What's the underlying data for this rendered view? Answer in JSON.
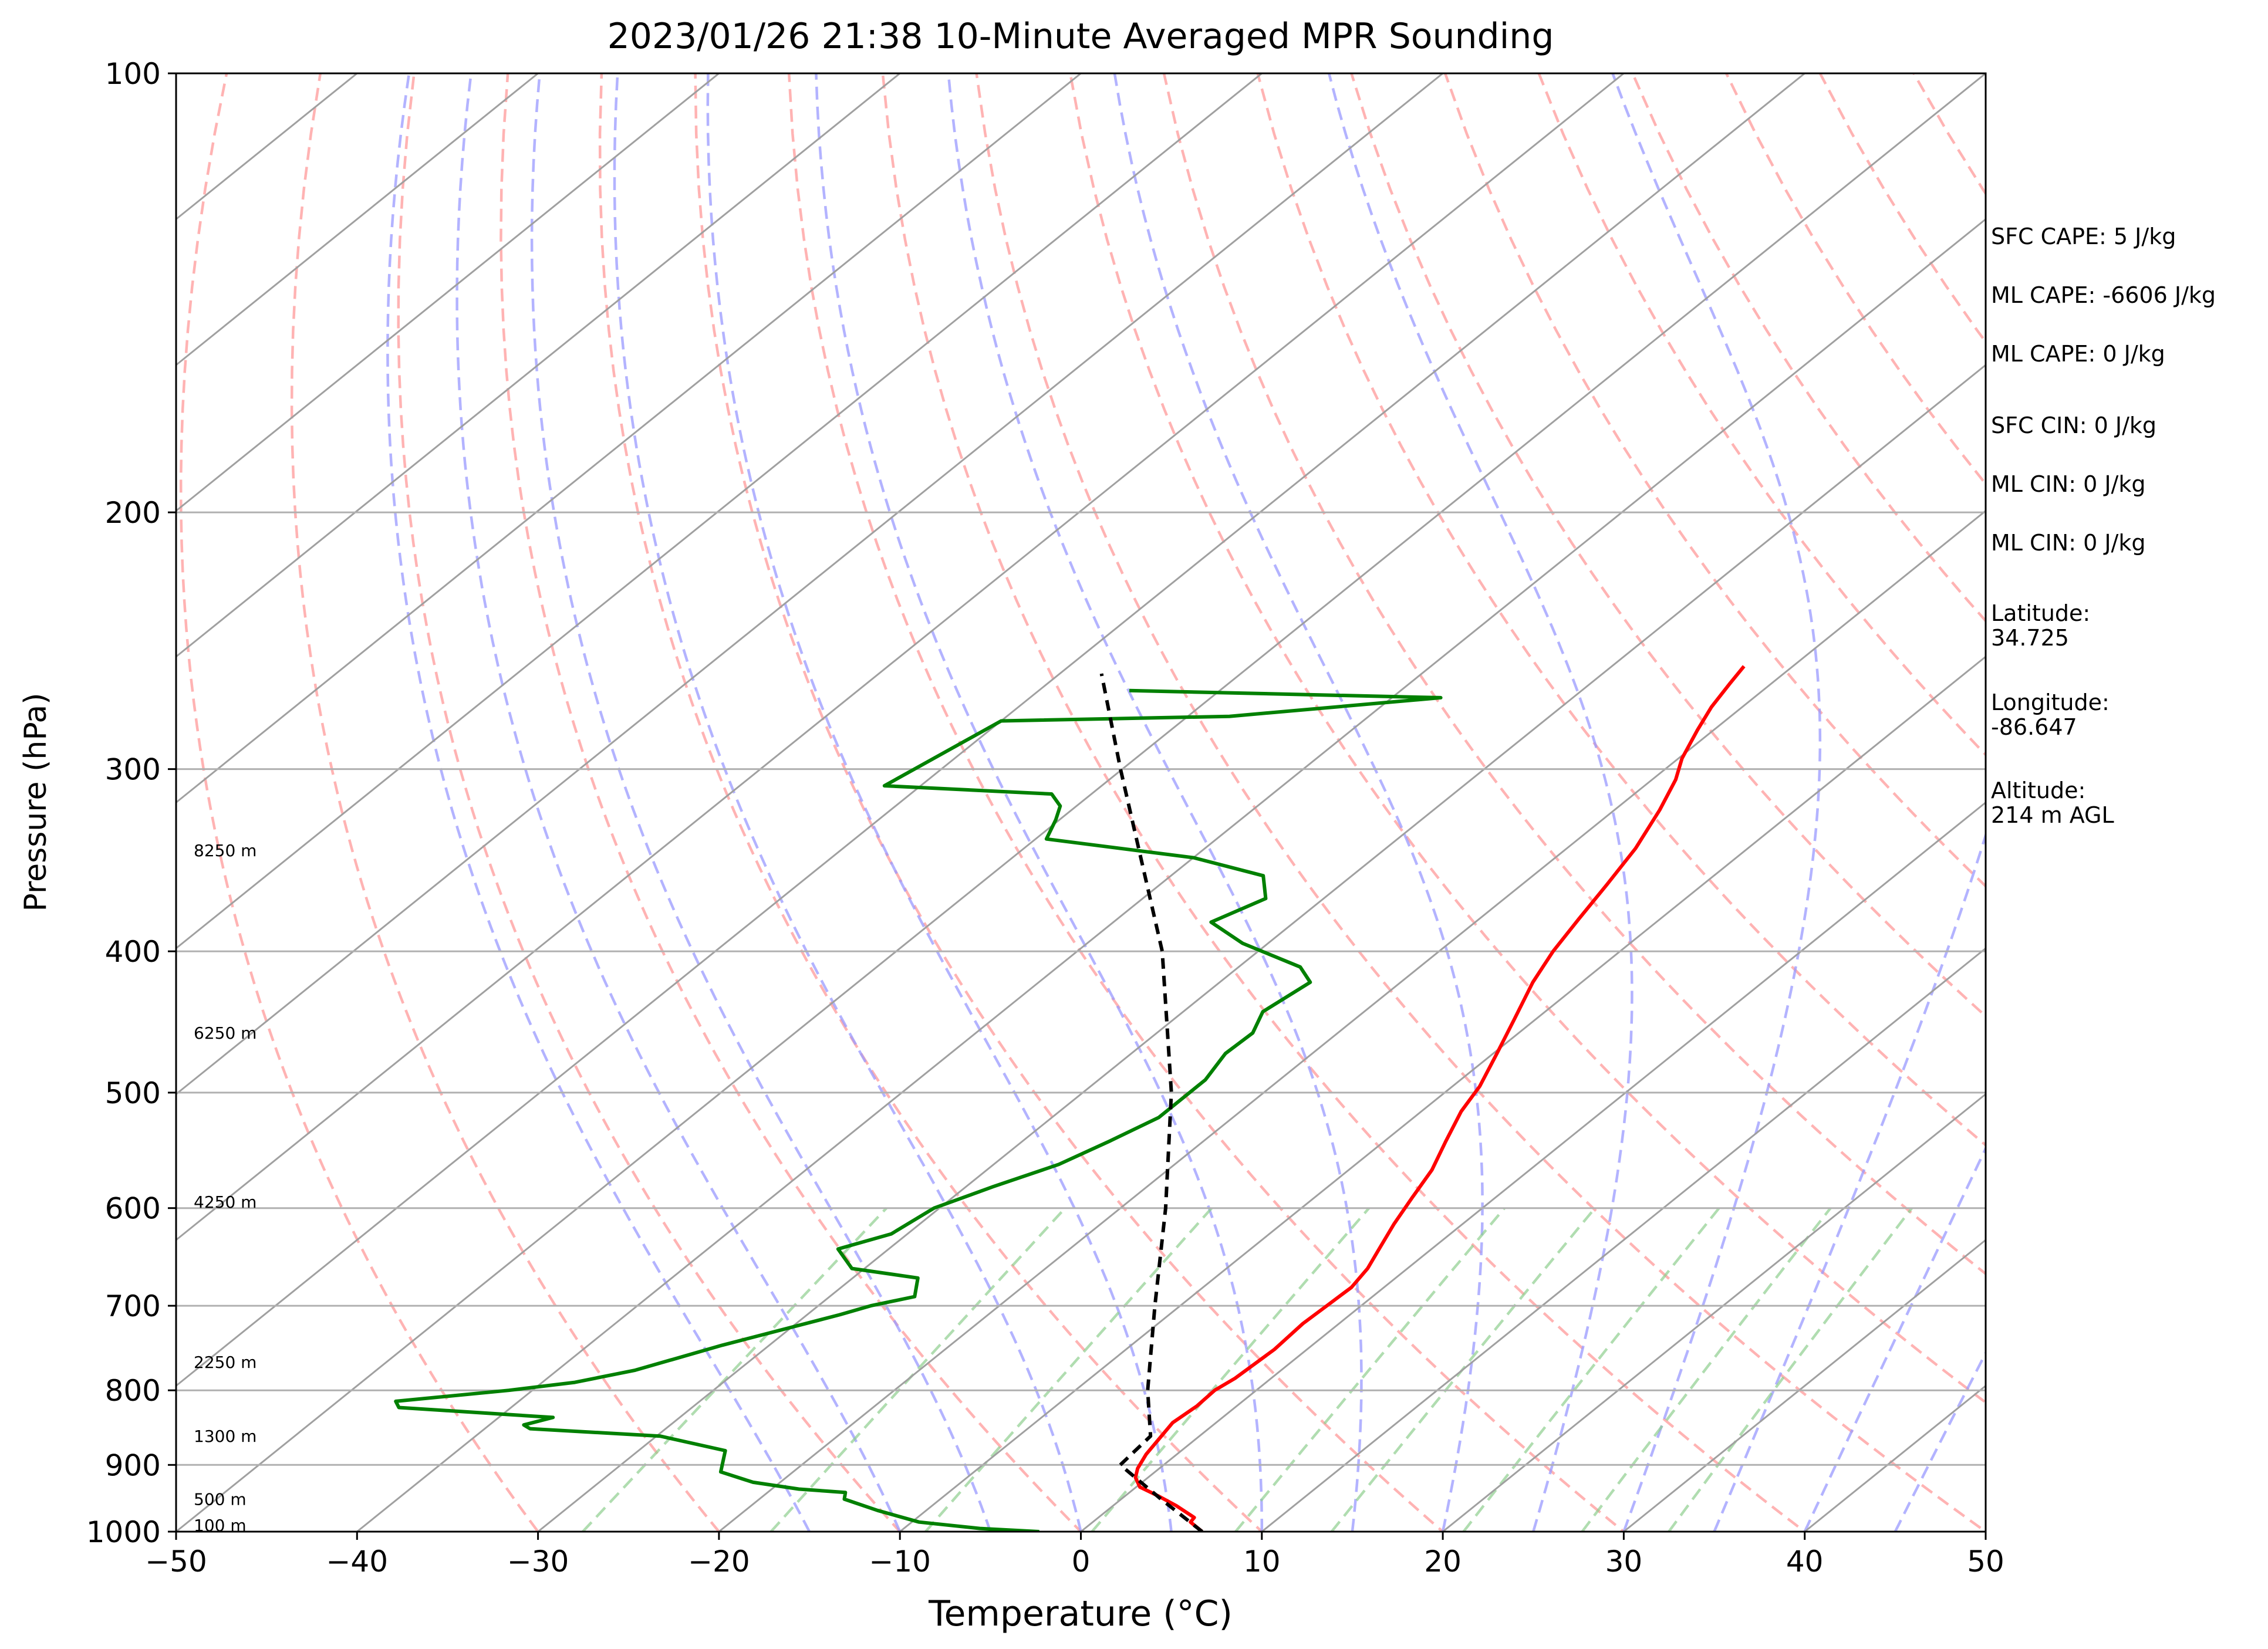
{
  "chart_data": {
    "type": "line",
    "title": "2023/01/26 21:38 10-Minute Averaged MPR Sounding",
    "xlabel": "Temperature (°C)",
    "ylabel": "Pressure (hPa)",
    "xlim": [
      -50,
      50
    ],
    "ylim": [
      1000,
      100
    ],
    "y_scale": "log",
    "grid": true,
    "x_ticks": [
      "−50",
      "−40",
      "−30",
      "−20",
      "−10",
      "0",
      "10",
      "20",
      "30",
      "40",
      "50"
    ],
    "y_ticks": [
      "100",
      "200",
      "300",
      "400",
      "500",
      "600",
      "700",
      "800",
      "900",
      "1000"
    ],
    "background_lines": {
      "isotherms": {
        "style": "solid",
        "color": "#a0a0a0"
      },
      "dry_adiabats": {
        "style": "dashed",
        "color": "#ff9a9a"
      },
      "moist_adiabats": {
        "style": "dashed",
        "color": "#9a9aff"
      },
      "mixing_ratio": {
        "style": "dashed",
        "color": "#8fcf8f"
      }
    },
    "series": [
      {
        "key": "temperature",
        "color": "#ff0000",
        "points": [
          {
            "p": 1000,
            "t": 6.7
          },
          {
            "p": 985,
            "t": 5.4
          },
          {
            "p": 978,
            "t": 5.3
          },
          {
            "p": 960,
            "t": 3.5
          },
          {
            "p": 945,
            "t": 1.8
          },
          {
            "p": 932,
            "t": 0.2
          },
          {
            "p": 918,
            "t": -0.7
          },
          {
            "p": 905,
            "t": -1.2
          },
          {
            "p": 885,
            "t": -1.7
          },
          {
            "p": 860,
            "t": -2.1
          },
          {
            "p": 842,
            "t": -2.4
          },
          {
            "p": 820,
            "t": -2.2
          },
          {
            "p": 800,
            "t": -2.3
          },
          {
            "p": 785,
            "t": -2.0
          },
          {
            "p": 750,
            "t": -1.8
          },
          {
            "p": 720,
            "t": -2.0
          },
          {
            "p": 700,
            "t": -1.9
          },
          {
            "p": 680,
            "t": -1.8
          },
          {
            "p": 660,
            "t": -2.2
          },
          {
            "p": 640,
            "t": -2.9
          },
          {
            "p": 615,
            "t": -3.8
          },
          {
            "p": 590,
            "t": -4.6
          },
          {
            "p": 565,
            "t": -5.4
          },
          {
            "p": 540,
            "t": -6.6
          },
          {
            "p": 515,
            "t": -7.8
          },
          {
            "p": 495,
            "t": -8.5
          },
          {
            "p": 470,
            "t": -9.8
          },
          {
            "p": 445,
            "t": -11.2
          },
          {
            "p": 420,
            "t": -12.7
          },
          {
            "p": 400,
            "t": -13.7
          },
          {
            "p": 380,
            "t": -14.5
          },
          {
            "p": 360,
            "t": -15.3
          },
          {
            "p": 340,
            "t": -16.2
          },
          {
            "p": 320,
            "t": -17.5
          },
          {
            "p": 305,
            "t": -18.7
          },
          {
            "p": 295,
            "t": -19.8
          },
          {
            "p": 282,
            "t": -20.9
          },
          {
            "p": 272,
            "t": -21.7
          },
          {
            "p": 262,
            "t": -22.3
          },
          {
            "p": 255,
            "t": -22.7
          }
        ]
      },
      {
        "key": "dewpoint",
        "color": "#008000",
        "points": [
          {
            "p": 1000,
            "t": -2.3
          },
          {
            "p": 995,
            "t": -5.8
          },
          {
            "p": 985,
            "t": -9.6
          },
          {
            "p": 967,
            "t": -12.7
          },
          {
            "p": 950,
            "t": -15.3
          },
          {
            "p": 940,
            "t": -15.7
          },
          {
            "p": 935,
            "t": -18.5
          },
          {
            "p": 925,
            "t": -21.5
          },
          {
            "p": 910,
            "t": -24.0
          },
          {
            "p": 880,
            "t": -25.2
          },
          {
            "p": 860,
            "t": -29.8
          },
          {
            "p": 850,
            "t": -37.5
          },
          {
            "p": 845,
            "t": -38.1
          },
          {
            "p": 835,
            "t": -37.0
          },
          {
            "p": 822,
            "t": -46.2
          },
          {
            "p": 814,
            "t": -46.8
          },
          {
            "p": 800,
            "t": -41.3
          },
          {
            "p": 790,
            "t": -38.2
          },
          {
            "p": 775,
            "t": -35.7
          },
          {
            "p": 745,
            "t": -32.6
          },
          {
            "p": 710,
            "t": -28.2
          },
          {
            "p": 700,
            "t": -27.1
          },
          {
            "p": 690,
            "t": -25.3
          },
          {
            "p": 670,
            "t": -26.4
          },
          {
            "p": 660,
            "t": -30.7
          },
          {
            "p": 640,
            "t": -32.8
          },
          {
            "p": 625,
            "t": -30.9
          },
          {
            "p": 600,
            "t": -30.3
          },
          {
            "p": 580,
            "t": -28.5
          },
          {
            "p": 560,
            "t": -26.4
          },
          {
            "p": 540,
            "t": -25.2
          },
          {
            "p": 520,
            "t": -24.1
          },
          {
            "p": 490,
            "t": -24.1
          },
          {
            "p": 470,
            "t": -24.8
          },
          {
            "p": 455,
            "t": -24.7
          },
          {
            "p": 440,
            "t": -25.6
          },
          {
            "p": 420,
            "t": -25.0
          },
          {
            "p": 410,
            "t": -26.6
          },
          {
            "p": 395,
            "t": -31.4
          },
          {
            "p": 382,
            "t": -34.6
          },
          {
            "p": 368,
            "t": -33.2
          },
          {
            "p": 355,
            "t": -34.9
          },
          {
            "p": 345,
            "t": -40.0
          },
          {
            "p": 335,
            "t": -49.4
          },
          {
            "p": 325,
            "t": -50.2
          },
          {
            "p": 318,
            "t": -50.9
          },
          {
            "p": 312,
            "t": -52.2
          },
          {
            "p": 308,
            "t": -62.0
          },
          {
            "p": 278,
            "t": -60.0
          },
          {
            "p": 276,
            "t": -47.7
          },
          {
            "p": 268,
            "t": -37.3
          },
          {
            "p": 265,
            "t": -55.0
          }
        ]
      },
      {
        "key": "parcel",
        "color": "#000000",
        "style": "dashed",
        "points": [
          {
            "p": 1000,
            "t": 6.7
          },
          {
            "p": 950,
            "t": 2.2
          },
          {
            "p": 900,
            "t": -2.4
          },
          {
            "p": 860,
            "t": -2.7
          },
          {
            "p": 800,
            "t": -6.0
          },
          {
            "p": 700,
            "t": -11.4
          },
          {
            "p": 600,
            "t": -17.5
          },
          {
            "p": 500,
            "t": -25.1
          },
          {
            "p": 400,
            "t": -35.3
          },
          {
            "p": 300,
            "t": -50.1
          },
          {
            "p": 258,
            "t": -57.7
          }
        ]
      }
    ],
    "height_labels": [
      {
        "p": 990,
        "label": "100 m"
      },
      {
        "p": 950,
        "label": "500 m"
      },
      {
        "p": 860,
        "label": "1300 m"
      },
      {
        "p": 765,
        "label": "2250 m"
      },
      {
        "p": 594,
        "label": "4250 m"
      },
      {
        "p": 455,
        "label": "6250 m"
      },
      {
        "p": 341,
        "label": "8250 m"
      }
    ]
  },
  "info": {
    "sfc_cape": "SFC CAPE: 5 J/kg",
    "ml_cape_1": "ML CAPE: -6606 J/kg",
    "ml_cape_2": "ML CAPE: 0 J/kg",
    "sfc_cin": "SFC CIN: 0 J/kg",
    "ml_cin_1": "ML CIN: 0 J/kg",
    "ml_cin_2": "ML CIN: 0 J/kg",
    "latitude_label": "Latitude:",
    "latitude_value": "34.725",
    "longitude_label": "Longitude:",
    "longitude_value": "-86.647",
    "altitude_label": "Altitude:",
    "altitude_value": "214 m AGL"
  }
}
